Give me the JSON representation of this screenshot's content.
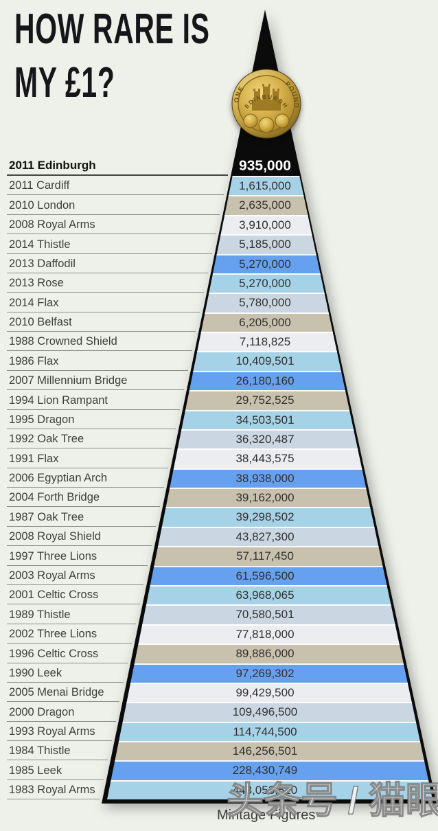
{
  "title": {
    "line1": "HOW RARE IS",
    "line2": "MY £1?"
  },
  "coin": {
    "top_text": "EDINBURGH",
    "left_text": "ONE",
    "right_text": "POUND"
  },
  "footer": {
    "caption": "Mintage Figures",
    "watermark": "头条号 / 猫眼看币"
  },
  "band_colors": {
    "black": "#0b0b0b",
    "lightblue": "#a6d2e7",
    "tan": "#c7c1ae",
    "white": "#ebedf0",
    "paleblue": "#cad7e3",
    "brightblue": "#66a1f0"
  },
  "chart_data": {
    "type": "bar",
    "variant": "pyramid-funnel, rarest coin at apex, one colored band per coin",
    "title": "HOW RARE IS MY £1?",
    "xlabel": "Mintage Figures",
    "legend_position": "none",
    "grid": false,
    "highlight_row": "2011 Edinburgh",
    "categories": [
      "2011 Edinburgh",
      "2011 Cardiff",
      "2010 London",
      "2008 Royal Arms",
      "2014 Thistle",
      "2013 Daffodil",
      "2013 Rose",
      "2014 Flax",
      "2010 Belfast",
      "1988 Crowned Shield",
      "1986 Flax",
      "2007 Millennium Bridge",
      "1994 Lion Rampant",
      "1995 Dragon",
      "1992 Oak Tree",
      "1991 Flax",
      "2006 Egyptian Arch",
      "2004 Forth Bridge",
      "1987 Oak Tree",
      "2008 Royal Shield",
      "1997 Three Lions",
      "2003 Royal Arms",
      "2001 Celtic Cross",
      "1989 Thistle",
      "2002 Three Lions",
      "1996 Celtic Cross",
      "1990 Leek",
      "2005 Menai Bridge",
      "2000 Dragon",
      "1993 Royal Arms",
      "1984 Thistle",
      "1985 Leek",
      "1983 Royal Arms"
    ],
    "values": [
      935000,
      1615000,
      2635000,
      3910000,
      5185000,
      5270000,
      5270000,
      5780000,
      6205000,
      7118825,
      10409501,
      26180160,
      29752525,
      34503501,
      36320487,
      38443575,
      38938000,
      39162000,
      39298502,
      43827300,
      57117450,
      61596500,
      63968065,
      70580501,
      77818000,
      89886000,
      97269302,
      99429500,
      109496500,
      114744500,
      146256501,
      228430749,
      443053510
    ],
    "value_labels": [
      "935,000",
      "1,615,000",
      "2,635,000",
      "3,910,000",
      "5,185,000",
      "5,270,000",
      "5,270,000",
      "5,780,000",
      "6,205,000",
      "7,118,825",
      "10,409,501",
      "26,180,160",
      "29,752,525",
      "34,503,501",
      "36,320,487",
      "38,443,575",
      "38,938,000",
      "39,162,000",
      "39,298,502",
      "43,827,300",
      "57,117,450",
      "61,596,500",
      "63,968,065",
      "70,580,501",
      "77,818,000",
      "89,886,000",
      "97,269,302",
      "99,429,500",
      "109,496,500",
      "114,744,500",
      "146,256,501",
      "228,430,749",
      "443,053,510"
    ],
    "row_color_keys": [
      "black",
      "lightblue",
      "tan",
      "white",
      "paleblue",
      "brightblue",
      "lightblue",
      "paleblue",
      "tan",
      "white",
      "lightblue",
      "brightblue",
      "tan",
      "lightblue",
      "paleblue",
      "white",
      "brightblue",
      "tan",
      "lightblue",
      "paleblue",
      "tan",
      "brightblue",
      "lightblue",
      "paleblue",
      "white",
      "tan",
      "brightblue",
      "white",
      "paleblue",
      "lightblue",
      "tan",
      "brightblue",
      "lightblue"
    ]
  }
}
